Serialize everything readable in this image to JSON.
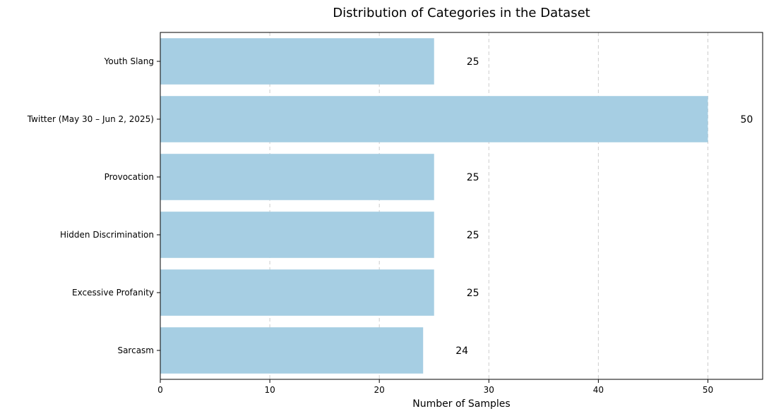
{
  "chart_data": {
    "type": "bar",
    "orientation": "horizontal",
    "title": "Distribution of Categories in the Dataset",
    "xlabel": "Number of Samples",
    "ylabel": "",
    "categories": [
      "Youth Slang",
      "Twitter (May 30 – Jun 2, 2025)",
      "Provocation",
      "Hidden Discrimination",
      "Excessive Profanity",
      "Sarcasm"
    ],
    "values": [
      25,
      50,
      25,
      25,
      25,
      24
    ],
    "xlim": [
      0,
      55
    ],
    "xticks": [
      0,
      10,
      20,
      30,
      40,
      50
    ],
    "grid": "x-dashed",
    "bar_color": "#a6cee3",
    "data_labels": true
  }
}
